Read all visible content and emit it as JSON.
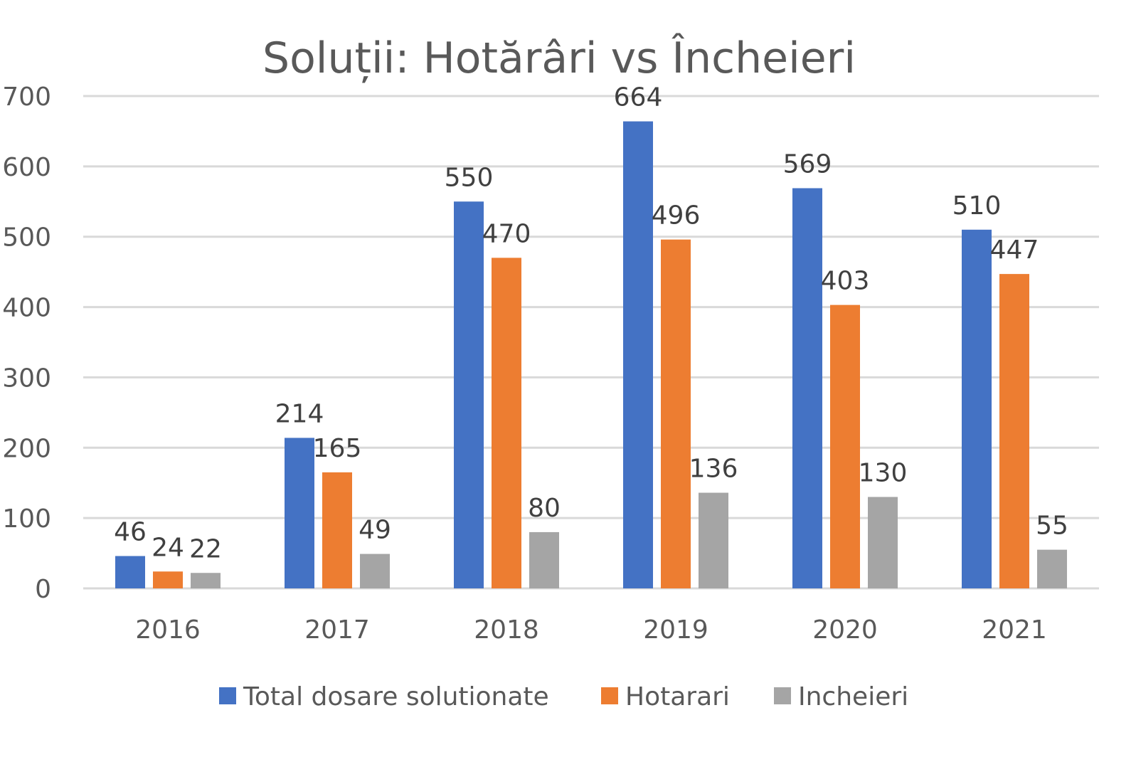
{
  "chart_data": {
    "type": "bar",
    "title": "Soluții: Hotărâri vs Încheieri",
    "xlabel": "",
    "ylabel": "",
    "categories": [
      "2016",
      "2017",
      "2018",
      "2019",
      "2020",
      "2021"
    ],
    "ylim": [
      0,
      700
    ],
    "yticks": [
      0,
      100,
      200,
      300,
      400,
      500,
      600,
      700
    ],
    "grid": true,
    "legend_position": "bottom",
    "series": [
      {
        "name": "Total dosare solutionate",
        "color": "#4472C4",
        "values": [
          46,
          214,
          550,
          664,
          569,
          510
        ]
      },
      {
        "name": "Hotarari",
        "color": "#ED7D31",
        "values": [
          24,
          165,
          470,
          496,
          403,
          447
        ]
      },
      {
        "name": "Incheieri",
        "color": "#A5A5A5",
        "values": [
          22,
          49,
          80,
          136,
          130,
          55
        ]
      }
    ]
  }
}
